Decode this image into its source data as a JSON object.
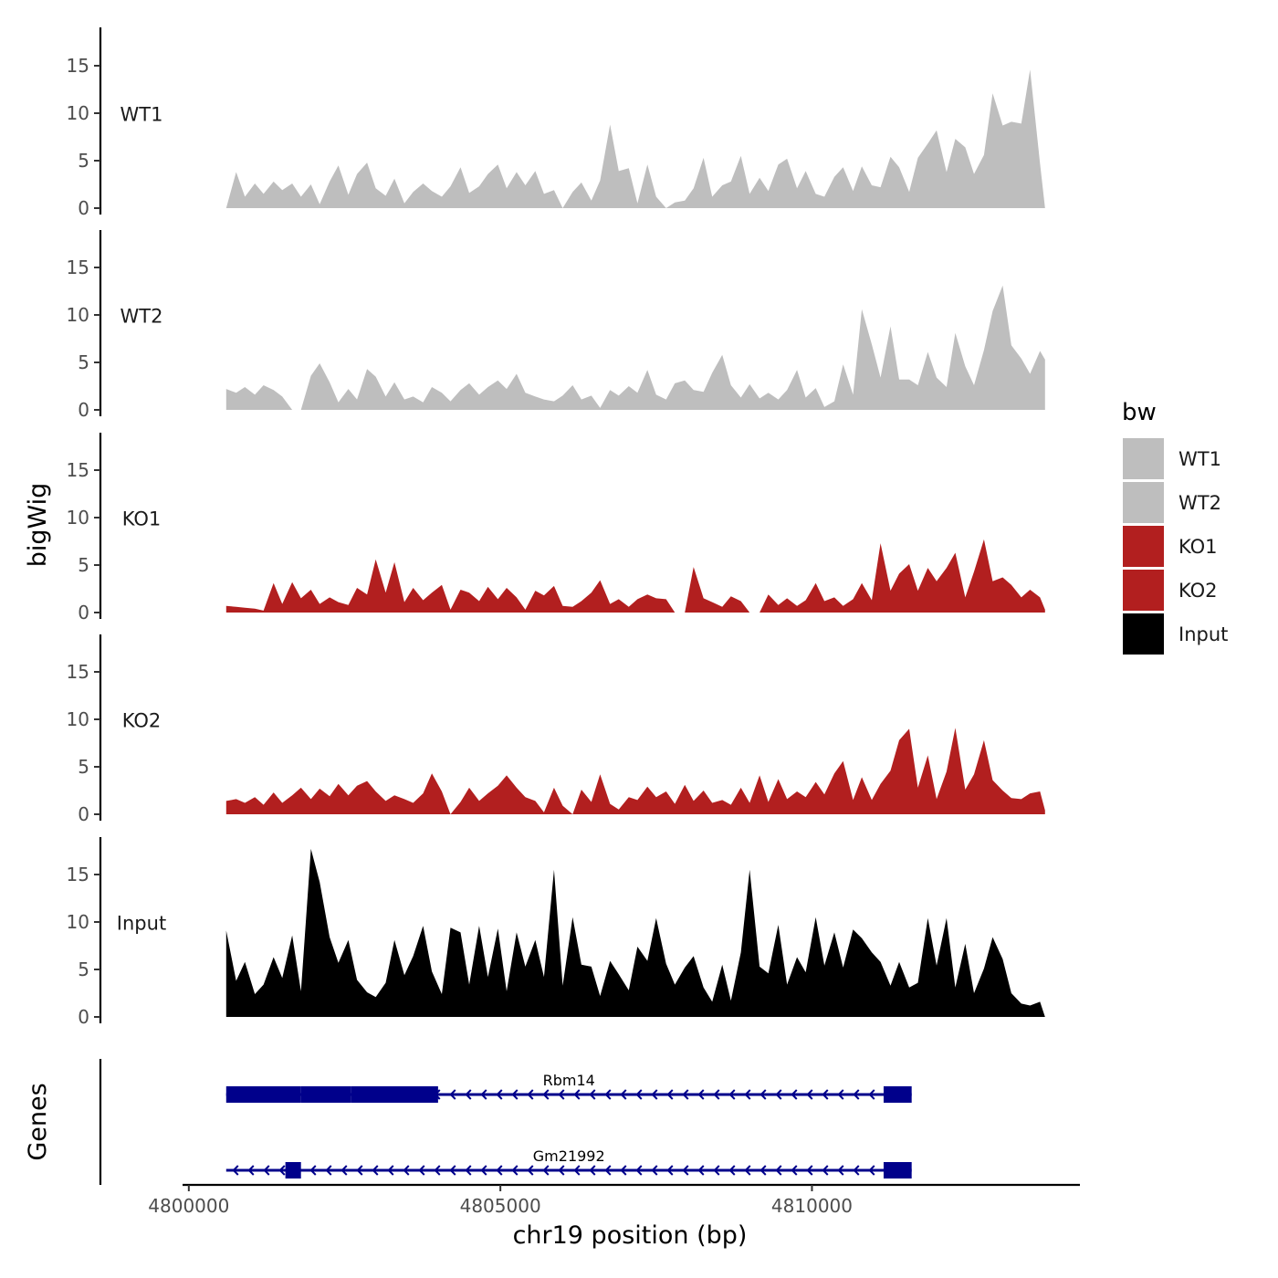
{
  "chart_data": {
    "type": "area",
    "title": "",
    "xlabel": "chr19 position (bp)",
    "ylabel_tracks": "bigWig",
    "ylabel_genes": "Genes",
    "xlim": [
      4799900,
      4814300
    ],
    "ylim": [
      0,
      19
    ],
    "x_ticks": [
      4800000,
      4805000,
      4810000
    ],
    "x_tick_labels": [
      "4800000",
      "4805000",
      "4810000"
    ],
    "y_ticks": [
      0,
      5,
      10,
      15
    ],
    "y_tick_labels": [
      "0",
      "5",
      "10",
      "15"
    ],
    "legend": {
      "title": "bw",
      "position": "right",
      "entries": [
        {
          "label": "WT1",
          "color": "#bebebe"
        },
        {
          "label": "WT2",
          "color": "#bebebe"
        },
        {
          "label": "KO1",
          "color": "#b21f1f"
        },
        {
          "label": "KO2",
          "color": "#b21f1f"
        },
        {
          "label": "Input",
          "color": "#000000"
        }
      ]
    },
    "series": [
      {
        "name": "WT1",
        "color": "#bebebe",
        "x": [
          4800600,
          4800760,
          4800900,
          4801060,
          4801200,
          4801360,
          4801500,
          4801660,
          4801800,
          4801960,
          4802100,
          4802260,
          4802400,
          4802560,
          4802700,
          4802860,
          4803000,
          4803160,
          4803300,
          4803460,
          4803600,
          4803760,
          4803900,
          4804060,
          4804200,
          4804360,
          4804500,
          4804660,
          4804800,
          4804960,
          4805100,
          4805260,
          4805400,
          4805560,
          4805700,
          4805860,
          4806000,
          4806160,
          4806300,
          4806460,
          4806600,
          4806760,
          4806900,
          4807060,
          4807200,
          4807360,
          4807500,
          4807660,
          4807800,
          4807960,
          4808100,
          4808260,
          4808400,
          4808560,
          4808700,
          4808860,
          4809000,
          4809160,
          4809300,
          4809460,
          4809600,
          4809760,
          4809900,
          4810060,
          4810200,
          4810360,
          4810500,
          4810660,
          4810800,
          4810960,
          4811100,
          4811260,
          4811400,
          4811560,
          4811700,
          4811860,
          4812000,
          4812160,
          4812300,
          4812460,
          4812600,
          4812760,
          4812900,
          4813060,
          4813200,
          4813360,
          4813500,
          4813660,
          4813740
        ],
        "y": [
          0,
          3.8,
          1.2,
          2.6,
          1.5,
          2.8,
          1.9,
          2.6,
          1.2,
          2.5,
          0.4,
          2.8,
          4.5,
          1.4,
          3.6,
          4.8,
          2.1,
          1.3,
          3.1,
          0.5,
          1.7,
          2.6,
          1.8,
          1.2,
          2.3,
          4.3,
          1.6,
          2.3,
          3.6,
          4.6,
          2.1,
          3.8,
          2.4,
          3.9,
          1.5,
          1.9,
          0,
          1.7,
          2.7,
          0.8,
          2.9,
          8.8,
          3.9,
          4.2,
          0.5,
          4.6,
          1.2,
          0,
          0.6,
          0.8,
          2.1,
          5.3,
          1.2,
          2.4,
          2.8,
          5.5,
          1.5,
          3.2,
          1.8,
          4.6,
          5.2,
          2.1,
          3.9,
          1.5,
          1.2,
          3.3,
          4.3,
          1.8,
          4.4,
          2.4,
          2.2,
          5.4,
          4.3,
          1.7,
          5.3,
          6.8,
          8.2,
          3.8,
          7.3,
          6.4,
          3.6,
          5.6,
          12.1,
          8.7,
          9.1,
          8.9,
          14.6,
          4.7,
          0
        ]
      },
      {
        "name": "WT2",
        "color": "#bebebe",
        "x": [
          4800600,
          4800760,
          4800900,
          4801060,
          4801200,
          4801360,
          4801500,
          4801660,
          4801800,
          4801960,
          4802100,
          4802260,
          4802400,
          4802560,
          4802700,
          4802860,
          4803000,
          4803160,
          4803300,
          4803460,
          4803600,
          4803760,
          4803900,
          4804060,
          4804200,
          4804360,
          4804500,
          4804660,
          4804800,
          4804960,
          4805100,
          4805260,
          4805400,
          4805560,
          4805700,
          4805860,
          4806000,
          4806160,
          4806300,
          4806460,
          4806600,
          4806760,
          4806900,
          4807060,
          4807200,
          4807360,
          4807500,
          4807660,
          4807800,
          4807960,
          4808100,
          4808260,
          4808400,
          4808560,
          4808700,
          4808860,
          4809000,
          4809160,
          4809300,
          4809460,
          4809600,
          4809760,
          4809900,
          4810060,
          4810200,
          4810360,
          4810500,
          4810660,
          4810800,
          4810960,
          4811100,
          4811260,
          4811400,
          4811560,
          4811700,
          4811860,
          4812000,
          4812160,
          4812300,
          4812460,
          4812600,
          4812760,
          4812900,
          4813060,
          4813200,
          4813360,
          4813500,
          4813660,
          4813740
        ],
        "y": [
          2.2,
          1.8,
          2.4,
          1.6,
          2.6,
          2.1,
          1.4,
          0,
          0,
          3.6,
          4.9,
          2.9,
          0.8,
          2.2,
          1.1,
          4.3,
          3.5,
          1.4,
          2.9,
          1.1,
          1.4,
          0.8,
          2.4,
          1.8,
          0.9,
          2.1,
          2.8,
          1.6,
          2.4,
          3.1,
          2.2,
          3.8,
          1.8,
          1.4,
          1.1,
          0.9,
          1.5,
          2.6,
          1.1,
          1.5,
          0.2,
          2.1,
          1.5,
          2.5,
          1.8,
          4.2,
          1.6,
          1.1,
          2.8,
          3.1,
          2.1,
          1.9,
          3.9,
          5.8,
          2.6,
          1.3,
          2.7,
          1.2,
          1.8,
          1.1,
          2.1,
          4.2,
          1.3,
          2.3,
          0.3,
          0.9,
          4.8,
          1.6,
          10.6,
          6.9,
          3.4,
          8.8,
          3.2,
          3.2,
          2.6,
          6.1,
          3.4,
          2.4,
          8.1,
          4.6,
          2.6,
          6.3,
          10.4,
          13.1,
          6.8,
          5.4,
          3.8,
          6.2,
          5.3
        ]
      },
      {
        "name": "KO1",
        "color": "#b21f1f",
        "x": [
          4800600,
          4800760,
          4800900,
          4801060,
          4801200,
          4801360,
          4801500,
          4801660,
          4801800,
          4801960,
          4802100,
          4802260,
          4802400,
          4802560,
          4802700,
          4802860,
          4803000,
          4803160,
          4803300,
          4803460,
          4803600,
          4803760,
          4803900,
          4804060,
          4804200,
          4804360,
          4804500,
          4804660,
          4804800,
          4804960,
          4805100,
          4805260,
          4805400,
          4805560,
          4805700,
          4805860,
          4806000,
          4806160,
          4806300,
          4806460,
          4806600,
          4806760,
          4806900,
          4807060,
          4807200,
          4807360,
          4807500,
          4807660,
          4807800,
          4807960,
          4808100,
          4808260,
          4808400,
          4808560,
          4808700,
          4808860,
          4809000,
          4809160,
          4809300,
          4809460,
          4809600,
          4809760,
          4809900,
          4810060,
          4810200,
          4810360,
          4810500,
          4810660,
          4810800,
          4810960,
          4811100,
          4811260,
          4811400,
          4811560,
          4811700,
          4811860,
          4812000,
          4812160,
          4812300,
          4812460,
          4812600,
          4812760,
          4812900,
          4813060,
          4813200,
          4813360,
          4813500,
          4813660,
          4813740
        ],
        "y": [
          0.7,
          0.6,
          0.5,
          0.4,
          0.2,
          3.1,
          0.9,
          3.2,
          1.5,
          2.4,
          0.9,
          1.6,
          1.1,
          0.8,
          2.6,
          1.9,
          5.6,
          2.1,
          5.3,
          1.1,
          2.6,
          1.3,
          2.1,
          2.9,
          0.3,
          2.4,
          2.1,
          1.2,
          2.7,
          1.4,
          2.6,
          1.6,
          0.3,
          2.3,
          1.8,
          2.8,
          0.7,
          0.6,
          1.2,
          2.1,
          3.4,
          0.9,
          1.4,
          0.6,
          1.4,
          1.9,
          1.5,
          1.4,
          0,
          0,
          4.8,
          1.5,
          1.1,
          0.6,
          1.7,
          1.2,
          0,
          0,
          1.9,
          0.8,
          1.5,
          0.7,
          1.3,
          3.1,
          1.2,
          1.6,
          0.7,
          1.4,
          3.1,
          1.3,
          7.3,
          2.3,
          4.1,
          5.1,
          2.3,
          4.7,
          3.3,
          4.7,
          6.3,
          1.6,
          4.3,
          7.7,
          3.3,
          3.7,
          2.9,
          1.6,
          2.4,
          1.6,
          0.3
        ]
      },
      {
        "name": "KO2",
        "color": "#b21f1f",
        "x": [
          4800600,
          4800760,
          4800900,
          4801060,
          4801200,
          4801360,
          4801500,
          4801660,
          4801800,
          4801960,
          4802100,
          4802260,
          4802400,
          4802560,
          4802700,
          4802860,
          4803000,
          4803160,
          4803300,
          4803460,
          4803600,
          4803760,
          4803900,
          4804060,
          4804200,
          4804360,
          4804500,
          4804660,
          4804800,
          4804960,
          4805100,
          4805260,
          4805400,
          4805560,
          4805700,
          4805860,
          4806000,
          4806160,
          4806300,
          4806460,
          4806600,
          4806760,
          4806900,
          4807060,
          4807200,
          4807360,
          4807500,
          4807660,
          4807800,
          4807960,
          4808100,
          4808260,
          4808400,
          4808560,
          4808700,
          4808860,
          4809000,
          4809160,
          4809300,
          4809460,
          4809600,
          4809760,
          4809900,
          4810060,
          4810200,
          4810360,
          4810500,
          4810660,
          4810800,
          4810960,
          4811100,
          4811260,
          4811400,
          4811560,
          4811700,
          4811860,
          4812000,
          4812160,
          4812300,
          4812460,
          4812600,
          4812760,
          4812900,
          4813060,
          4813200,
          4813360,
          4813500,
          4813660,
          4813740
        ],
        "y": [
          1.4,
          1.6,
          1.2,
          1.8,
          1.0,
          2.3,
          1.2,
          2.0,
          2.8,
          1.6,
          2.7,
          1.9,
          3.2,
          2.0,
          3.0,
          3.5,
          2.4,
          1.4,
          2.0,
          1.6,
          1.2,
          2.2,
          4.3,
          2.4,
          0,
          1.3,
          2.8,
          1.4,
          2.2,
          3.0,
          4.1,
          2.8,
          1.8,
          1.4,
          0.2,
          2.8,
          0.9,
          0,
          2.6,
          1.3,
          4.2,
          1.1,
          0.5,
          1.8,
          1.5,
          2.9,
          1.8,
          2.4,
          1.1,
          3.1,
          1.4,
          2.5,
          1.2,
          1.5,
          1.0,
          2.8,
          1.2,
          4.1,
          1.3,
          3.7,
          1.6,
          2.4,
          1.8,
          3.4,
          2.1,
          4.3,
          5.6,
          1.5,
          3.9,
          1.5,
          3.2,
          4.6,
          7.8,
          9.0,
          2.8,
          6.2,
          1.6,
          4.5,
          9.1,
          2.6,
          4.2,
          7.8,
          3.6,
          2.5,
          1.7,
          1.6,
          2.2,
          2.4,
          0.4
        ]
      },
      {
        "name": "Input",
        "color": "#000000",
        "x": [
          4800600,
          4800760,
          4800900,
          4801060,
          4801200,
          4801360,
          4801500,
          4801660,
          4801800,
          4801960,
          4802100,
          4802260,
          4802400,
          4802560,
          4802700,
          4802860,
          4803000,
          4803160,
          4803300,
          4803460,
          4803600,
          4803760,
          4803900,
          4804060,
          4804200,
          4804360,
          4804500,
          4804660,
          4804800,
          4804960,
          4805100,
          4805260,
          4805400,
          4805560,
          4805700,
          4805860,
          4806000,
          4806160,
          4806300,
          4806460,
          4806600,
          4806760,
          4806900,
          4807060,
          4807200,
          4807360,
          4807500,
          4807660,
          4807800,
          4807960,
          4808100,
          4808260,
          4808400,
          4808560,
          4808700,
          4808860,
          4809000,
          4809160,
          4809300,
          4809460,
          4809600,
          4809760,
          4809900,
          4810060,
          4810200,
          4810360,
          4810500,
          4810660,
          4810800,
          4810960,
          4811100,
          4811260,
          4811400,
          4811560,
          4811700,
          4811860,
          4812000,
          4812160,
          4812300,
          4812460,
          4812600,
          4812760,
          4812900,
          4813060,
          4813200,
          4813360,
          4813500,
          4813660,
          4813740
        ],
        "y": [
          9.1,
          3.8,
          5.8,
          2.4,
          3.4,
          6.3,
          4.1,
          8.6,
          2.7,
          17.7,
          14.2,
          8.4,
          5.7,
          8.1,
          3.9,
          2.6,
          2.1,
          3.6,
          8.1,
          4.4,
          6.4,
          9.6,
          4.8,
          2.4,
          9.4,
          8.9,
          3.4,
          9.6,
          4.2,
          9.3,
          2.7,
          8.9,
          5.3,
          8.1,
          4.2,
          15.5,
          3.3,
          10.5,
          5.5,
          5.3,
          2.2,
          5.9,
          4.5,
          2.8,
          7.4,
          5.9,
          10.4,
          5.6,
          3.4,
          5.2,
          6.4,
          3.1,
          1.6,
          5.5,
          1.7,
          6.8,
          15.5,
          5.3,
          4.6,
          9.7,
          3.4,
          6.3,
          4.7,
          10.5,
          5.4,
          8.9,
          5.2,
          9.2,
          8.3,
          6.8,
          5.8,
          3.3,
          5.8,
          3.1,
          3.6,
          10.4,
          5.4,
          10.4,
          3.1,
          7.7,
          2.5,
          5.1,
          8.4,
          6.1,
          2.5,
          1.4,
          1.2,
          1.6,
          0
        ]
      }
    ],
    "genes": [
      {
        "name": "Rbm14",
        "color": "#00008b",
        "strand": "-",
        "start": 4800600,
        "end": 4811600,
        "exons": [
          [
            4800600,
            4801800
          ],
          [
            4801800,
            4802600
          ],
          [
            4802600,
            4804000
          ],
          [
            4811150,
            4811600
          ]
        ]
      },
      {
        "name": "Gm21992",
        "color": "#00008b",
        "strand": "-",
        "start": 4800600,
        "end": 4811600,
        "exons": [
          [
            4801550,
            4801800
          ],
          [
            4811150,
            4811600
          ]
        ]
      }
    ]
  }
}
